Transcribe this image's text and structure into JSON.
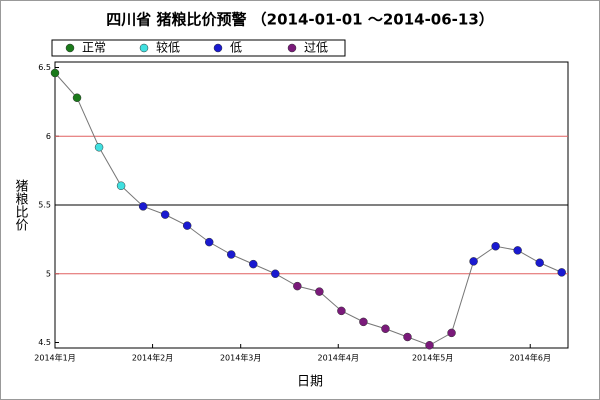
{
  "chart_data": {
    "type": "line",
    "title": "四川省 猪粮比价预警 （2014-01-01 ～2014-06-13）",
    "x_label": "日期",
    "y_label": "猪粮比价",
    "legend": [
      {
        "name": "正常",
        "color": "#1a7a1a"
      },
      {
        "name": "较低",
        "color": "#40e0e0"
      },
      {
        "name": "低",
        "color": "#1a1ad0"
      },
      {
        "name": "过低",
        "color": "#7a1a7a"
      }
    ],
    "x": [
      0,
      7,
      14,
      21,
      28,
      35,
      42,
      49,
      56,
      63,
      70,
      77,
      84,
      91,
      98,
      105,
      112,
      119,
      126,
      133,
      140,
      147,
      154,
      161
    ],
    "values": [
      6.46,
      6.28,
      5.92,
      5.64,
      5.49,
      5.43,
      5.35,
      5.23,
      5.14,
      5.07,
      5.0,
      4.91,
      4.87,
      4.73,
      4.65,
      4.6,
      4.54,
      4.48,
      4.57,
      5.09,
      5.2,
      5.17,
      5.08,
      5.01
    ],
    "point_level": [
      0,
      0,
      1,
      1,
      2,
      2,
      2,
      2,
      2,
      2,
      2,
      3,
      3,
      3,
      3,
      3,
      3,
      3,
      3,
      2,
      2,
      2,
      2,
      2
    ],
    "line_color": "#777777",
    "xlim": [
      0,
      163
    ],
    "xticks": [
      {
        "value": 0,
        "label": "2014年1月"
      },
      {
        "value": 31,
        "label": "2014年2月"
      },
      {
        "value": 59,
        "label": "2014年3月"
      },
      {
        "value": 90,
        "label": "2014年4月"
      },
      {
        "value": 120,
        "label": "2014年5月"
      },
      {
        "value": 151,
        "label": "2014年6月"
      }
    ],
    "ylim": [
      4.46,
      6.54
    ],
    "yticks": [
      4.5,
      5.0,
      5.5,
      6.0,
      6.5
    ],
    "reference_lines": [
      {
        "value": 6.0,
        "color": "#e06060"
      },
      {
        "value": 5.5,
        "color": "#000000"
      },
      {
        "value": 5.0,
        "color": "#e06060"
      }
    ]
  }
}
